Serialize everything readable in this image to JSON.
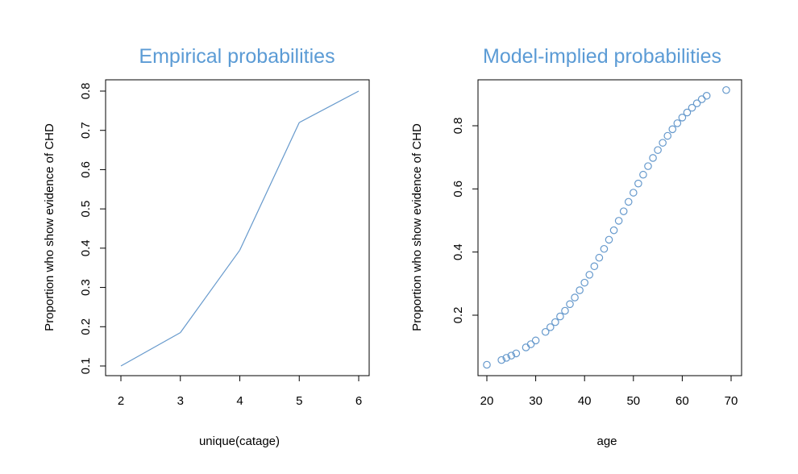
{
  "colors": {
    "series": "#6699cc",
    "title": "#5b9bd5"
  },
  "chart_data": [
    {
      "type": "line",
      "title": "Empirical probabilities",
      "xlabel": "unique(catage)",
      "ylabel": "Proportion who show evidence of CHD",
      "xlim": [
        2,
        6
      ],
      "ylim": [
        0.1,
        0.8
      ],
      "xticks": [
        "2",
        "3",
        "4",
        "5",
        "6"
      ],
      "yticks": [
        "0.1",
        "0.2",
        "0.3",
        "0.4",
        "0.5",
        "0.6",
        "0.7",
        "0.8"
      ],
      "grid": false,
      "x": [
        2,
        3,
        4,
        5,
        6
      ],
      "y": [
        0.1,
        0.185,
        0.395,
        0.72,
        0.8
      ]
    },
    {
      "type": "scatter",
      "title": "Model-implied probabilities",
      "xlabel": "age",
      "ylabel": "Proportion who show evidence of CHD",
      "xlim": [
        20,
        70
      ],
      "ylim": [
        0.04,
        0.92
      ],
      "xticks": [
        "20",
        "30",
        "40",
        "50",
        "60",
        "70"
      ],
      "yticks": [
        "0.2",
        "0.4",
        "0.6",
        "0.8"
      ],
      "grid": false,
      "x": [
        20,
        23,
        24,
        25,
        26,
        28,
        29,
        30,
        32,
        33,
        34,
        35,
        36,
        37,
        38,
        39,
        40,
        41,
        42,
        43,
        44,
        45,
        46,
        47,
        48,
        49,
        50,
        51,
        52,
        53,
        54,
        55,
        56,
        57,
        58,
        59,
        60,
        61,
        62,
        63,
        64,
        65,
        69
      ],
      "y": [
        0.043,
        0.058,
        0.065,
        0.072,
        0.079,
        0.098,
        0.108,
        0.12,
        0.147,
        0.162,
        0.178,
        0.196,
        0.214,
        0.235,
        0.256,
        0.279,
        0.303,
        0.328,
        0.355,
        0.382,
        0.41,
        0.439,
        0.469,
        0.499,
        0.529,
        0.559,
        0.588,
        0.617,
        0.645,
        0.672,
        0.698,
        0.723,
        0.746,
        0.768,
        0.789,
        0.808,
        0.826,
        0.842,
        0.857,
        0.871,
        0.884,
        0.895,
        0.913
      ]
    }
  ]
}
